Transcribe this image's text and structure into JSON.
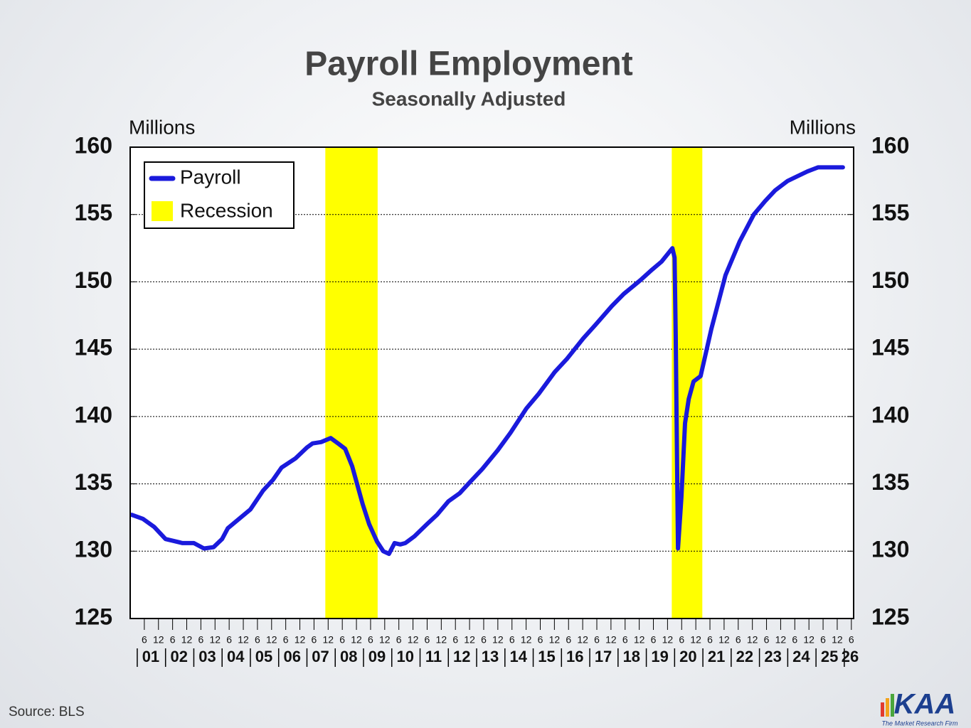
{
  "chart_data": {
    "type": "line",
    "title": "Payroll Employment",
    "subtitle": "Seasonally Adjusted",
    "y_label": "Millions",
    "y2_label": "Millions",
    "source": "Source: BLS",
    "logo": {
      "text": "KAA",
      "tagline": "The Market Research Firm"
    },
    "x": [
      2000.8,
      2001.2,
      2001.6,
      2002.0,
      2002.2,
      2002.6,
      2003.0,
      2003.36,
      2003.7,
      2004.0,
      2004.2,
      2004.6,
      2005.0,
      2005.45,
      2005.8,
      2006.1,
      2006.6,
      2007.0,
      2007.2,
      2007.5,
      2007.84,
      2008.1,
      2008.35,
      2008.6,
      2008.97,
      2009.2,
      2009.48,
      2009.7,
      2009.9,
      2010.1,
      2010.3,
      2010.48,
      2010.8,
      2011.24,
      2011.6,
      2012.0,
      2012.4,
      2012.75,
      2013.2,
      2013.75,
      2014.2,
      2014.76,
      2015.2,
      2015.76,
      2016.2,
      2016.77,
      2017.2,
      2017.78,
      2018.2,
      2018.78,
      2019.2,
      2019.54,
      2019.92,
      2020.0,
      2020.04,
      2020.12,
      2020.24,
      2020.37,
      2020.5,
      2020.67,
      2020.92,
      2021.3,
      2021.8,
      2022.3,
      2022.8,
      2023.2,
      2023.56,
      2024.0,
      2024.3,
      2024.7,
      2025.07,
      2025.5,
      2025.95
    ],
    "series": [
      {
        "name": "Payroll",
        "color": "#1a1adc",
        "values": [
          132.7,
          132.4,
          131.8,
          130.9,
          130.8,
          130.6,
          130.6,
          130.2,
          130.3,
          130.9,
          131.7,
          132.4,
          133.1,
          134.5,
          135.3,
          136.2,
          136.9,
          137.7,
          138.0,
          138.1,
          138.4,
          138.0,
          137.6,
          136.3,
          133.5,
          132.0,
          130.7,
          130.0,
          129.8,
          130.6,
          130.5,
          130.6,
          131.1,
          132.0,
          132.7,
          133.7,
          134.3,
          135.1,
          136.1,
          137.5,
          138.8,
          140.6,
          141.7,
          143.3,
          144.3,
          145.8,
          146.8,
          148.2,
          149.1,
          150.1,
          150.9,
          151.5,
          152.5,
          151.8,
          146.0,
          130.2,
          134.0,
          139.5,
          141.3,
          142.6,
          143.0,
          146.5,
          150.5,
          153.0,
          155.0,
          156.0,
          156.8,
          157.5,
          157.8,
          158.2,
          158.5,
          158.5,
          158.5
        ]
      }
    ],
    "recessions": {
      "name": "Recession",
      "color": "#ffff00",
      "periods": [
        [
          2007.65,
          2009.5
        ],
        [
          2019.9,
          2020.98
        ]
      ]
    },
    "xlim": [
      2000.75,
      2026.33
    ],
    "ylim": [
      125,
      160
    ],
    "yticks": [
      125,
      130,
      135,
      140,
      145,
      150,
      155,
      160
    ],
    "y2lim": [
      125,
      160
    ],
    "y2ticks": [
      125,
      130,
      135,
      140,
      145,
      150,
      155,
      160
    ],
    "grid": true,
    "legend": "top-left",
    "xticks": [
      {
        "value": 2001,
        "label": "01"
      },
      {
        "value": 2002,
        "label": "02"
      },
      {
        "value": 2003,
        "label": "03"
      },
      {
        "value": 2004,
        "label": "04"
      },
      {
        "value": 2005,
        "label": "05"
      },
      {
        "value": 2006,
        "label": "06"
      },
      {
        "value": 2007,
        "label": "07"
      },
      {
        "value": 2008,
        "label": "08"
      },
      {
        "value": 2009,
        "label": "09"
      },
      {
        "value": 2010,
        "label": "10"
      },
      {
        "value": 2011,
        "label": "11"
      },
      {
        "value": 2012,
        "label": "12"
      },
      {
        "value": 2013,
        "label": "13"
      },
      {
        "value": 2014,
        "label": "14"
      },
      {
        "value": 2015,
        "label": "15"
      },
      {
        "value": 2016,
        "label": "16"
      },
      {
        "value": 2017,
        "label": "17"
      },
      {
        "value": 2018,
        "label": "18"
      },
      {
        "value": 2019,
        "label": "19"
      },
      {
        "value": 2020,
        "label": "20"
      },
      {
        "value": 2021,
        "label": "21"
      },
      {
        "value": 2022,
        "label": "22"
      },
      {
        "value": 2023,
        "label": "23"
      },
      {
        "value": 2024,
        "label": "24"
      },
      {
        "value": 2025,
        "label": "25"
      },
      {
        "value": 2026,
        "label": "26"
      }
    ],
    "xticks_minor": [
      {
        "value": 2001.25,
        "label": "6"
      },
      {
        "value": 2001.75,
        "label": "12"
      },
      {
        "value": 2002.25,
        "label": "6"
      },
      {
        "value": 2002.75,
        "label": "12"
      },
      {
        "value": 2003.25,
        "label": "6"
      },
      {
        "value": 2003.75,
        "label": "12"
      },
      {
        "value": 2004.25,
        "label": "6"
      },
      {
        "value": 2004.75,
        "label": "12"
      },
      {
        "value": 2005.25,
        "label": "6"
      },
      {
        "value": 2005.75,
        "label": "12"
      },
      {
        "value": 2006.25,
        "label": "6"
      },
      {
        "value": 2006.75,
        "label": "12"
      },
      {
        "value": 2007.25,
        "label": "6"
      },
      {
        "value": 2007.75,
        "label": "12"
      },
      {
        "value": 2008.25,
        "label": "6"
      },
      {
        "value": 2008.75,
        "label": "12"
      },
      {
        "value": 2009.25,
        "label": "6"
      },
      {
        "value": 2009.75,
        "label": "12"
      },
      {
        "value": 2010.25,
        "label": "6"
      },
      {
        "value": 2010.75,
        "label": "12"
      },
      {
        "value": 2011.25,
        "label": "6"
      },
      {
        "value": 2011.75,
        "label": "12"
      },
      {
        "value": 2012.25,
        "label": "6"
      },
      {
        "value": 2012.75,
        "label": "12"
      },
      {
        "value": 2013.25,
        "label": "6"
      },
      {
        "value": 2013.75,
        "label": "12"
      },
      {
        "value": 2014.25,
        "label": "6"
      },
      {
        "value": 2014.75,
        "label": "12"
      },
      {
        "value": 2015.25,
        "label": "6"
      },
      {
        "value": 2015.75,
        "label": "12"
      },
      {
        "value": 2016.25,
        "label": "6"
      },
      {
        "value": 2016.75,
        "label": "12"
      },
      {
        "value": 2017.25,
        "label": "6"
      },
      {
        "value": 2017.75,
        "label": "12"
      },
      {
        "value": 2018.25,
        "label": "6"
      },
      {
        "value": 2018.75,
        "label": "12"
      },
      {
        "value": 2019.25,
        "label": "6"
      },
      {
        "value": 2019.75,
        "label": "12"
      },
      {
        "value": 2020.25,
        "label": "6"
      },
      {
        "value": 2020.75,
        "label": "12"
      },
      {
        "value": 2021.25,
        "label": "6"
      },
      {
        "value": 2021.75,
        "label": "12"
      },
      {
        "value": 2022.25,
        "label": "6"
      },
      {
        "value": 2022.75,
        "label": "12"
      },
      {
        "value": 2023.25,
        "label": "6"
      },
      {
        "value": 2023.75,
        "label": "12"
      },
      {
        "value": 2024.25,
        "label": "6"
      },
      {
        "value": 2024.75,
        "label": "12"
      },
      {
        "value": 2025.25,
        "label": "6"
      },
      {
        "value": 2025.75,
        "label": "12"
      },
      {
        "value": 2026.25,
        "label": "6"
      }
    ]
  }
}
